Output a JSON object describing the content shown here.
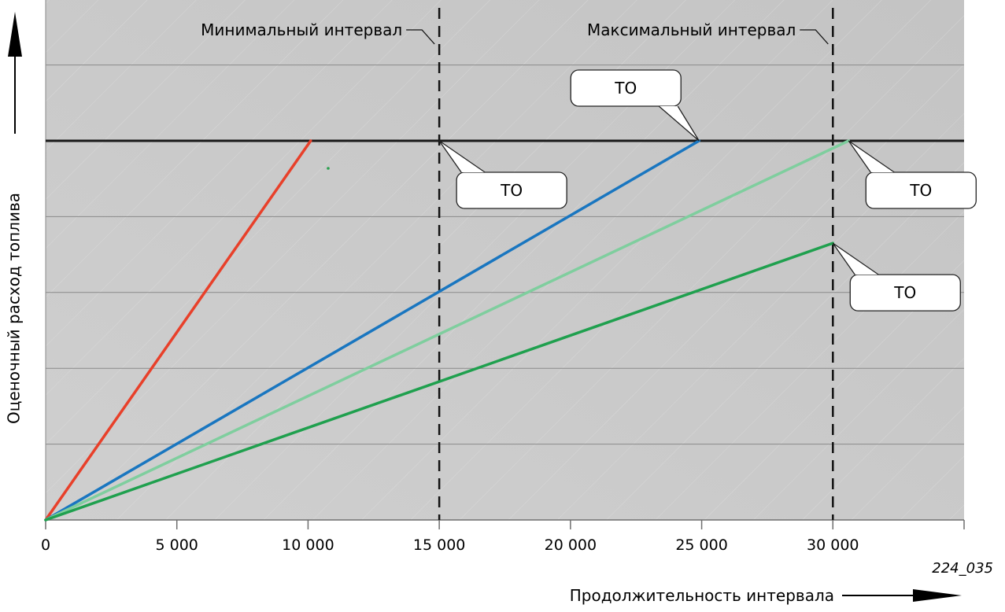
{
  "chart_data": {
    "type": "line",
    "title": "",
    "xlabel": "Продолжительность интервала",
    "ylabel": "Оценочный расход топлива",
    "xlim": [
      0,
      35000
    ],
    "ylim": [
      0,
      100
    ],
    "x_ticks": [
      {
        "value": 0,
        "label": "0"
      },
      {
        "value": 5000,
        "label": "5 000"
      },
      {
        "value": 10000,
        "label": "10 000"
      },
      {
        "value": 15000,
        "label": "15 000"
      },
      {
        "value": 20000,
        "label": "20 000"
      },
      {
        "value": 25000,
        "label": "25 000"
      },
      {
        "value": 30000,
        "label": "30 000"
      }
    ],
    "y_gridlines": [
      20,
      40,
      60,
      80,
      100
    ],
    "grid": true,
    "threshold_line": {
      "y": 100,
      "color": "#1a1a1a"
    },
    "vertical_markers": [
      {
        "x": 15000,
        "label": "Минимальный интервал"
      },
      {
        "x": 30000,
        "label": "Максимальный интервал"
      }
    ],
    "series": [
      {
        "color": "#e8402a",
        "points": [
          [
            0,
            0
          ],
          [
            10100,
            100
          ]
        ]
      },
      {
        "color": "#1976c0",
        "points": [
          [
            0,
            0
          ],
          [
            24900,
            100
          ]
        ]
      },
      {
        "color": "#7fce9e",
        "points": [
          [
            0,
            0
          ],
          [
            30600,
            100
          ]
        ]
      },
      {
        "color": "#1fa04e",
        "points": [
          [
            0,
            0
          ],
          [
            30000,
            73
          ]
        ]
      }
    ],
    "callouts": [
      {
        "text": "ТО",
        "x": 24900,
        "y": 100,
        "box": "above"
      },
      {
        "text": "ТО",
        "x": 15000,
        "y": 100,
        "box": "below-right"
      },
      {
        "text": "ТО",
        "x": 30600,
        "y": 100,
        "box": "below-right"
      },
      {
        "text": "ТО",
        "x": 30000,
        "y": 73,
        "box": "below-right"
      }
    ],
    "figure_id": "224_035"
  }
}
